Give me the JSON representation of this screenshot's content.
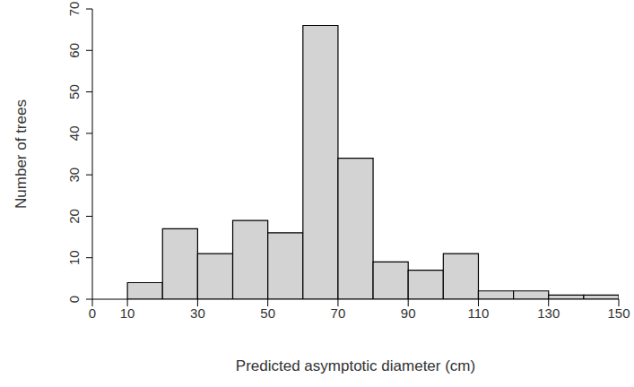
{
  "chart_data": {
    "type": "histogram",
    "x_label": "Predicted asymptotic diameter (cm)",
    "y_label": "Number of trees",
    "bins": [
      10,
      20,
      30,
      40,
      50,
      60,
      70,
      80,
      90,
      100,
      110,
      120,
      130,
      140,
      150
    ],
    "values": [
      4,
      17,
      11,
      19,
      16,
      66,
      34,
      9,
      7,
      11,
      2,
      2,
      1,
      1
    ],
    "color": "#d3d3d3",
    "xlim": [
      0,
      150
    ],
    "xticks": [
      0,
      10,
      30,
      50,
      70,
      90,
      110,
      130,
      150
    ],
    "ylim": [
      0,
      70
    ],
    "yticks": [
      0,
      10,
      20,
      30,
      40,
      50,
      60,
      70
    ],
    "grid": false
  }
}
